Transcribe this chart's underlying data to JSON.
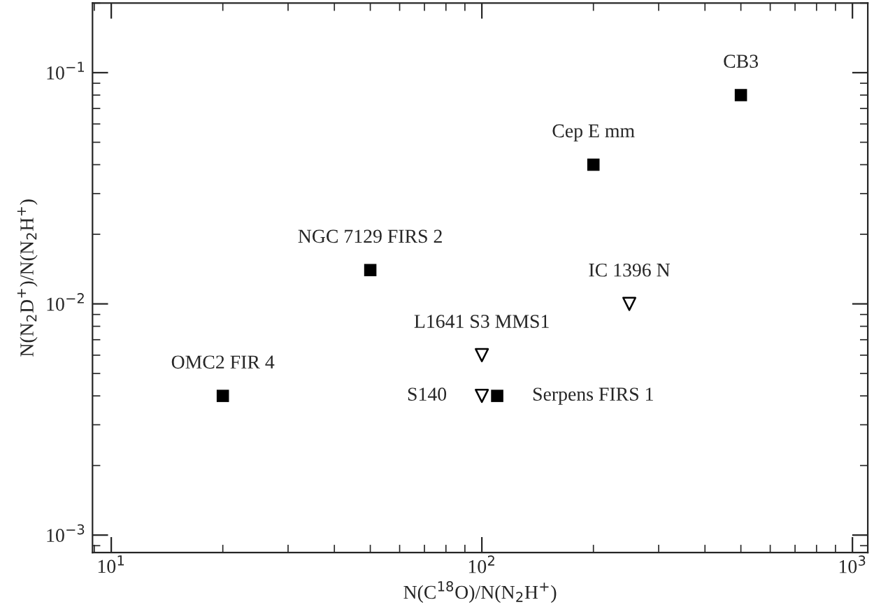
{
  "chart_data": {
    "type": "scatter",
    "xlabel": "N(C$^{18}$O)/N(N$_{2}$H$^{+}$)",
    "ylabel": "N(N$_{2}$D$^{+}$)/N(N$_{2}$H$^{+}$)",
    "log": "xy",
    "xlim": [
      8.9,
      1100
    ],
    "ylim": [
      0.00084,
      0.2
    ],
    "xticks": [
      {
        "value": 10,
        "label": "10$^{1}$"
      },
      {
        "value": 100,
        "label": "10$^{2}$"
      },
      {
        "value": 1000,
        "label": "10$^{3}$"
      }
    ],
    "yticks": [
      {
        "value": 0.001,
        "label": "10$^{−3}$"
      },
      {
        "value": 0.01,
        "label": "10$^{−2}$"
      },
      {
        "value": 0.1,
        "label": "10$^{−1}$"
      }
    ],
    "grid": false,
    "legend": false,
    "series": [
      {
        "color": "#000000",
        "marker": "square",
        "x": [
          20,
          50,
          110,
          200,
          500
        ],
        "values": [
          0.004,
          0.014,
          0.004,
          0.04,
          0.08
        ]
      },
      {
        "color": "#000000",
        "marker": "triangle",
        "x": [
          100,
          100,
          250
        ],
        "values": [
          0.006,
          0.004,
          0.01
        ]
      }
    ],
    "annotations": [
      {
        "text": "OMC2 FIR 4",
        "x": 20,
        "y": 0.004
      },
      {
        "text": "NGC 7129 FIRS 2",
        "x": 50,
        "y": 0.014
      },
      {
        "text": "Serpens FIRS 1",
        "x": 110,
        "y": 0.004
      },
      {
        "text": "Cep E mm",
        "x": 200,
        "y": 0.04
      },
      {
        "text": "CB3",
        "x": 500,
        "y": 0.08
      },
      {
        "text": "L1641 S3 MMS1",
        "x": 100,
        "y": 0.006
      },
      {
        "text": "S140",
        "x": 100,
        "y": 0.004
      },
      {
        "text": "IC 1396 N",
        "x": 250,
        "y": 0.01
      }
    ]
  }
}
